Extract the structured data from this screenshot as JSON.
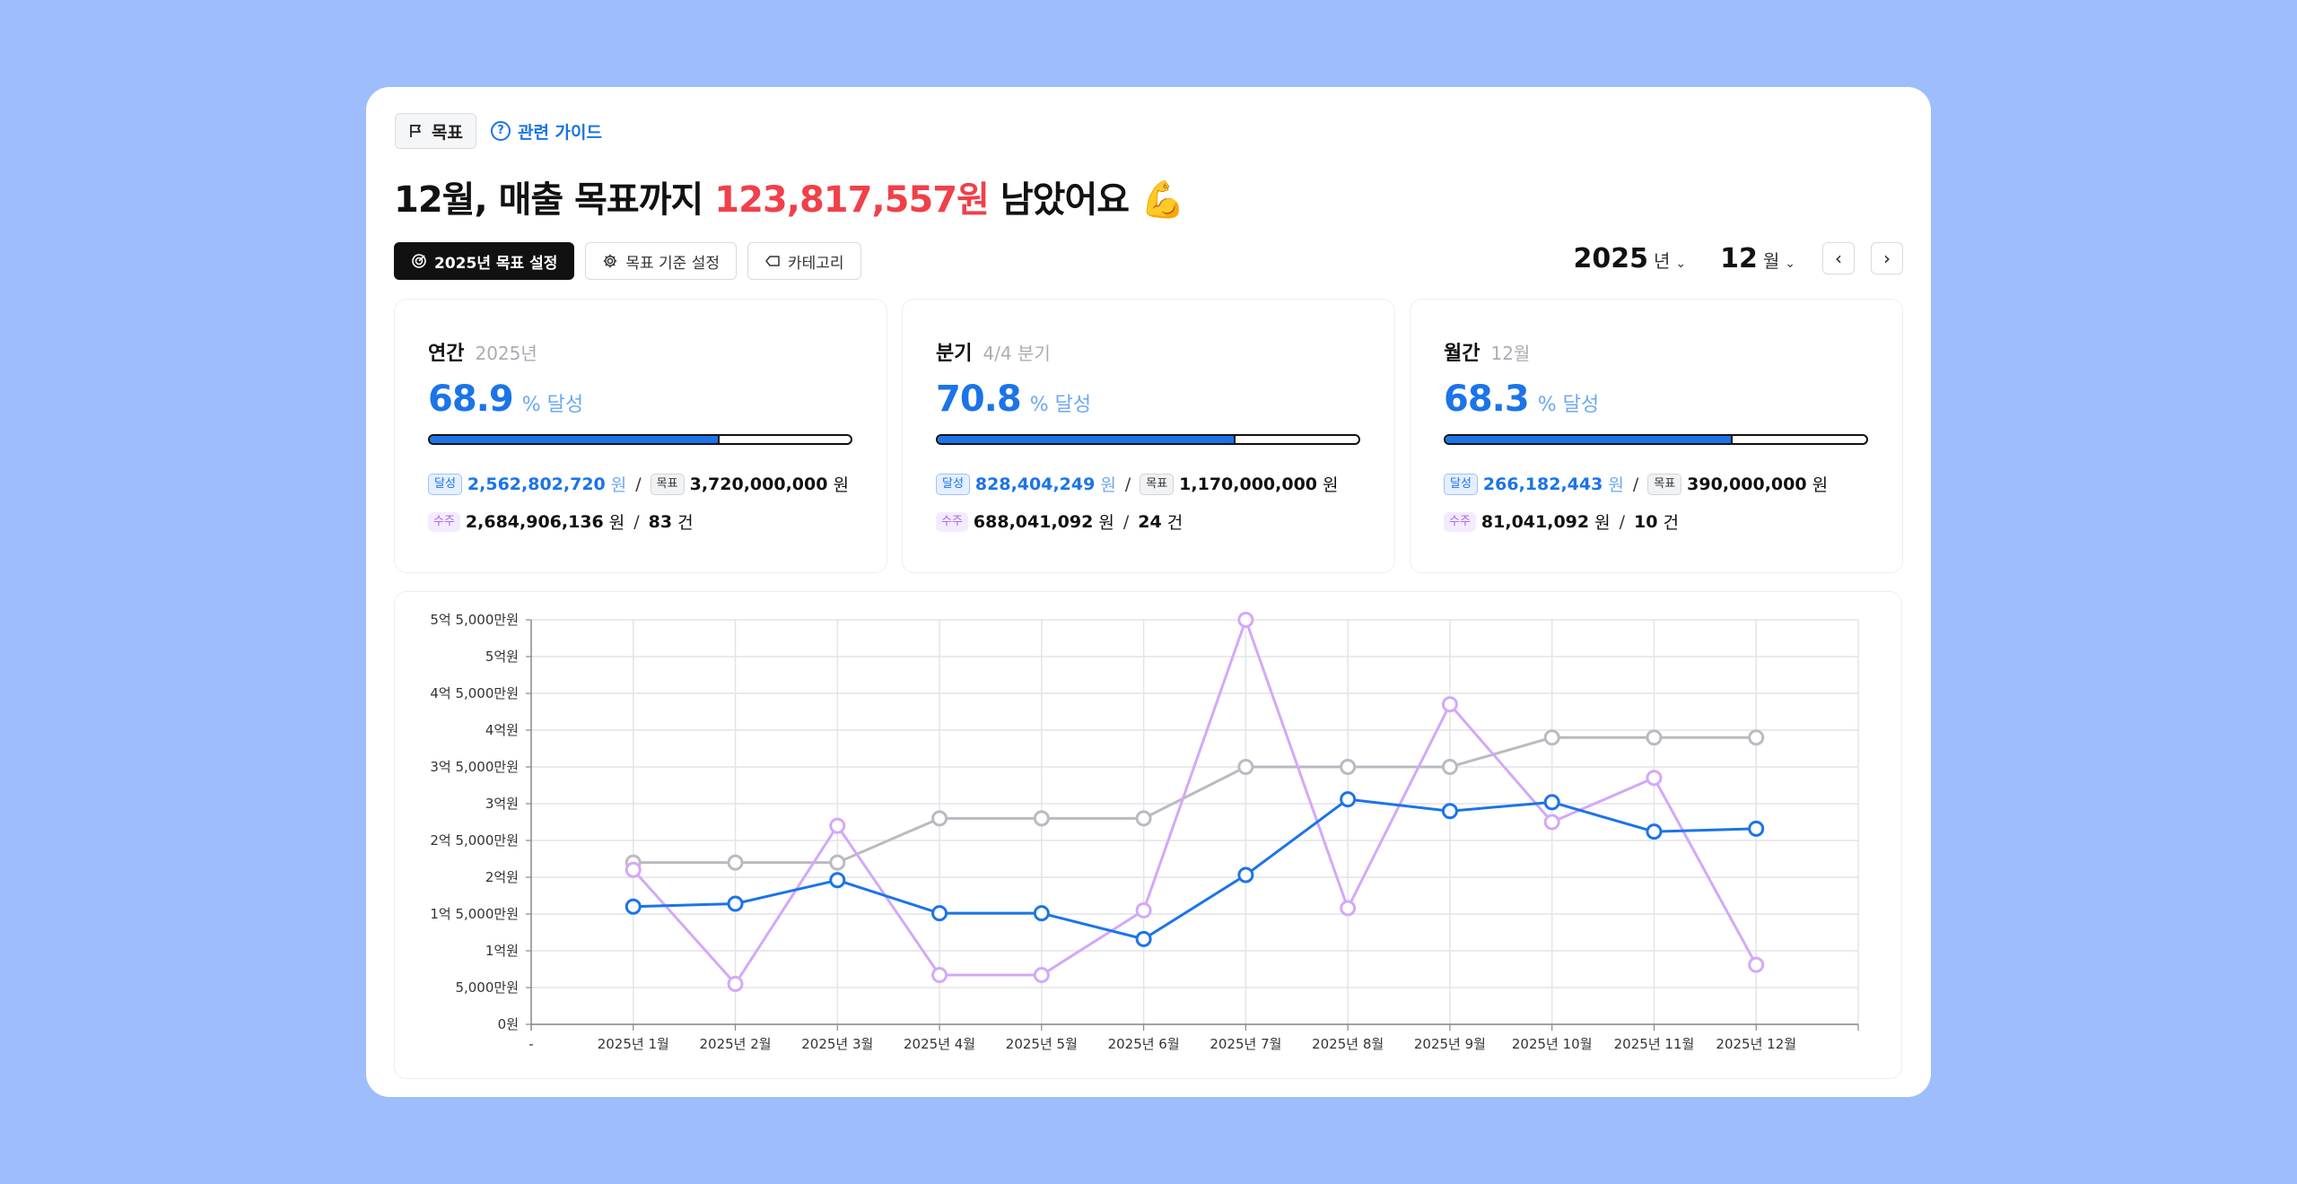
{
  "header": {
    "goal_tag": "목표",
    "guide_link": "관련 가이드",
    "headline_prefix": "12월, 매출 목표까지 ",
    "headline_amount": "123,817,557원",
    "headline_suffix": " 남았어요 💪"
  },
  "toolbar": {
    "set_goal": "2025년 목표 설정",
    "criteria": "목표 기준 설정",
    "category": "카테고리"
  },
  "period": {
    "year": "2025",
    "year_unit": "년",
    "month": "12",
    "month_unit": "월"
  },
  "kpis": [
    {
      "label": "연간",
      "sub": "2025년",
      "percent": "68.9",
      "percent_text": "% 달성",
      "progress": 0.689,
      "achieved_chip": "달성",
      "achieved": "2,562,802,720",
      "achieved_unit": "원",
      "target_chip": "목표",
      "target": "3,720,000,000",
      "target_unit": "원",
      "order_chip": "수주",
      "orders": "2,684,906,136",
      "orders_unit": "원",
      "count": "83",
      "count_unit": "건"
    },
    {
      "label": "분기",
      "sub": "4/4 분기",
      "percent": "70.8",
      "percent_text": "% 달성",
      "progress": 0.708,
      "achieved_chip": "달성",
      "achieved": "828,404,249",
      "achieved_unit": "원",
      "target_chip": "목표",
      "target": "1,170,000,000",
      "target_unit": "원",
      "order_chip": "수주",
      "orders": "688,041,092",
      "orders_unit": "원",
      "count": "24",
      "count_unit": "건"
    },
    {
      "label": "월간",
      "sub": "12월",
      "percent": "68.3",
      "percent_text": "% 달성",
      "progress": 0.683,
      "achieved_chip": "달성",
      "achieved": "266,182,443",
      "achieved_unit": "원",
      "target_chip": "목표",
      "target": "390,000,000",
      "target_unit": "원",
      "order_chip": "수주",
      "orders": "81,041,092",
      "orders_unit": "원",
      "count": "10",
      "count_unit": "건"
    }
  ],
  "colors": {
    "accent": "#1b74e8",
    "remaining": "#f0404a",
    "target_series": "#babbc1",
    "orders_series": "#d4a8f7"
  },
  "chart_data": {
    "type": "line",
    "categories": [
      "2025년 1월",
      "2025년 2월",
      "2025년 3월",
      "2025년 4월",
      "2025년 5월",
      "2025년 6월",
      "2025년 7월",
      "2025년 8월",
      "2025년 9월",
      "2025년 10월",
      "2025년 11월",
      "2025년 12월"
    ],
    "y_ticks": [
      "0원",
      "5,000만원",
      "1억원",
      "1억 5,000만원",
      "2억원",
      "2억 5,000만원",
      "3억원",
      "3억 5,000만원",
      "4억원",
      "4억 5,000만원",
      "5억원",
      "5억 5,000만원"
    ],
    "x_origin_label": "-",
    "ylim": [
      0,
      550000000
    ],
    "grid": true,
    "series": [
      {
        "values": [
          220000000,
          220000000,
          220000000,
          280000000,
          280000000,
          280000000,
          350000000,
          350000000,
          350000000,
          390000000,
          390000000,
          390000000
        ],
        "color": "#babbc1"
      },
      {
        "values": [
          210000000,
          55000000,
          270000000,
          67000000,
          67000000,
          155000000,
          550000000,
          158000000,
          435000000,
          275000000,
          335000000,
          81000000
        ],
        "color": "#d4a8f7"
      },
      {
        "values": [
          160000000,
          164000000,
          196000000,
          151000000,
          151000000,
          116000000,
          203000000,
          306000000,
          290000000,
          302000000,
          262000000,
          266000000
        ],
        "color": "#1b74e8"
      }
    ]
  }
}
